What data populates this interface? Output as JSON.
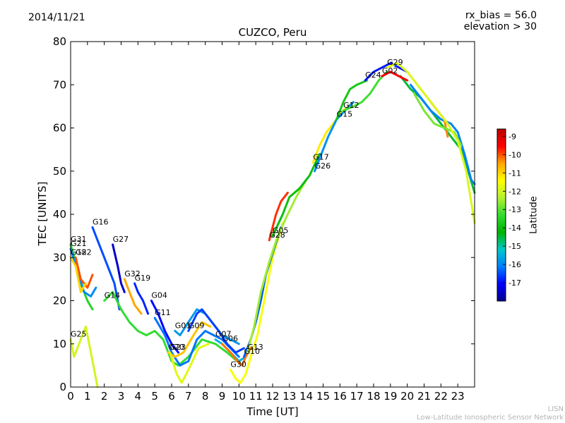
{
  "header": {
    "date": "2014/11/21",
    "bias_line": "rx_bias = 56.0",
    "elevation_line": "elevation > 30"
  },
  "footer": {
    "org_short": "LISN",
    "org_full": "Low-Latitude Ionospheric Sensor Network"
  },
  "colors": {
    "colormap": [
      "#00008f",
      "#0000ff",
      "#0080ff",
      "#00c8c8",
      "#00b400",
      "#32dc32",
      "#b4f032",
      "#ffff00",
      "#ffa500",
      "#ff0000",
      "#bb0000"
    ]
  },
  "chart_data": {
    "type": "line",
    "title": "CUZCO, Peru",
    "xlabel": "Time [UT]",
    "ylabel": "TEC [UNITS]",
    "xlim": [
      0,
      24
    ],
    "ylim": [
      0,
      80
    ],
    "xticks": [
      "0",
      "1",
      "2",
      "3",
      "4",
      "5",
      "6",
      "7",
      "8",
      "9",
      "10",
      "11",
      "12",
      "13",
      "14",
      "15",
      "16",
      "17",
      "18",
      "19",
      "20",
      "21",
      "22",
      "23"
    ],
    "yticks": [
      "0",
      "10",
      "20",
      "30",
      "40",
      "50",
      "60",
      "70",
      "80"
    ],
    "grid": false,
    "colorbar": {
      "label": "Latitude",
      "min": -18,
      "max": -8.6,
      "ticks": [
        "-9",
        "-10",
        "-11",
        "-12",
        "-13",
        "-14",
        "-15",
        "-16",
        "-17"
      ],
      "tick_values": [
        -9,
        -10,
        -11,
        -12,
        -13,
        -14,
        -15,
        -16,
        -17
      ]
    },
    "series": [
      {
        "name": "G31",
        "lat": -13.5,
        "points": [
          [
            0.0,
            33
          ],
          [
            0.3,
            29
          ],
          [
            0.6,
            24
          ],
          [
            1.0,
            20
          ],
          [
            1.3,
            18
          ]
        ]
      },
      {
        "name": "G21",
        "lat": -16.0,
        "points": [
          [
            0.0,
            32
          ],
          [
            0.4,
            27
          ],
          [
            0.8,
            22
          ],
          [
            1.2,
            21
          ],
          [
            1.5,
            23
          ]
        ]
      },
      {
        "name": "G22",
        "lat": -10.0,
        "points": [
          [
            0.3,
            30
          ],
          [
            0.6,
            25
          ],
          [
            1.0,
            23
          ],
          [
            1.3,
            26
          ]
        ]
      },
      {
        "name": "G18",
        "lat": -11.0,
        "points": [
          [
            0.0,
            30
          ],
          [
            0.3,
            28
          ],
          [
            0.6,
            22
          ],
          [
            0.9,
            24
          ]
        ]
      },
      {
        "name": "G16",
        "lat": -16.5,
        "points": [
          [
            1.3,
            37
          ],
          [
            1.6,
            34
          ],
          [
            2.0,
            30
          ],
          [
            2.3,
            27
          ],
          [
            2.6,
            24
          ],
          [
            2.9,
            18
          ]
        ]
      },
      {
        "name": "G27",
        "lat": -17.5,
        "points": [
          [
            2.5,
            33
          ],
          [
            2.8,
            28
          ],
          [
            3.0,
            24
          ],
          [
            3.2,
            22
          ]
        ]
      },
      {
        "name": "G25",
        "lat": -12.0,
        "points": [
          [
            0.0,
            11
          ],
          [
            0.2,
            7
          ],
          [
            0.5,
            10
          ],
          [
            0.9,
            14
          ],
          [
            1.2,
            8
          ],
          [
            1.5,
            2
          ],
          [
            1.6,
            0
          ]
        ]
      },
      {
        "name": "G32",
        "lat": -10.5,
        "points": [
          [
            3.2,
            25
          ],
          [
            3.5,
            22
          ],
          [
            3.8,
            19
          ],
          [
            4.2,
            17
          ]
        ]
      },
      {
        "name": "G19",
        "lat": -16.8,
        "points": [
          [
            3.8,
            24
          ],
          [
            4.0,
            22
          ],
          [
            4.3,
            20
          ],
          [
            4.6,
            17
          ]
        ]
      },
      {
        "name": "G14",
        "lat": -13.3,
        "points": [
          [
            2.0,
            20
          ],
          [
            2.5,
            22
          ],
          [
            3.0,
            18
          ],
          [
            3.5,
            15
          ],
          [
            4.0,
            13
          ],
          [
            4.5,
            12
          ],
          [
            5.0,
            13
          ],
          [
            5.5,
            11
          ],
          [
            6.0,
            6
          ],
          [
            6.4,
            5
          ],
          [
            7.0,
            7
          ],
          [
            7.8,
            11
          ],
          [
            8.6,
            10
          ],
          [
            9.3,
            8
          ],
          [
            9.9,
            6
          ]
        ]
      },
      {
        "name": "G04",
        "lat": -17.0,
        "points": [
          [
            4.8,
            20
          ],
          [
            5.2,
            17
          ],
          [
            5.6,
            13
          ],
          [
            6.0,
            10
          ],
          [
            6.4,
            8
          ]
        ]
      },
      {
        "name": "G11",
        "lat": -16.2,
        "points": [
          [
            5.0,
            16
          ],
          [
            5.6,
            12
          ],
          [
            6.0,
            8
          ],
          [
            6.5,
            5
          ],
          [
            7.0,
            6
          ],
          [
            7.5,
            11
          ],
          [
            8.0,
            13
          ],
          [
            8.5,
            12
          ],
          [
            9.0,
            11
          ],
          [
            9.5,
            9
          ],
          [
            10.0,
            7
          ]
        ]
      },
      {
        "name": "G01",
        "lat": -15.8,
        "points": [
          [
            6.2,
            13
          ],
          [
            6.5,
            12
          ],
          [
            7.0,
            15
          ],
          [
            7.5,
            18
          ],
          [
            8.0,
            17
          ],
          [
            8.6,
            14
          ],
          [
            9.0,
            12
          ],
          [
            9.5,
            11
          ],
          [
            10.0,
            10
          ]
        ]
      },
      {
        "name": "G09",
        "lat": -16.6,
        "points": [
          [
            7.0,
            13
          ],
          [
            7.5,
            17
          ],
          [
            7.8,
            18
          ],
          [
            8.2,
            16
          ],
          [
            8.8,
            13
          ],
          [
            9.3,
            10
          ],
          [
            9.8,
            8
          ],
          [
            10.3,
            9
          ]
        ]
      },
      {
        "name": "G20",
        "lat": -10.8,
        "points": [
          [
            5.8,
            8
          ],
          [
            6.2,
            7
          ],
          [
            6.7,
            8
          ],
          [
            7.3,
            12
          ],
          [
            7.8,
            15
          ],
          [
            8.3,
            14
          ]
        ]
      },
      {
        "name": "G23",
        "lat": -11.8,
        "points": [
          [
            5.9,
            8
          ],
          [
            6.3,
            3
          ],
          [
            6.6,
            1
          ],
          [
            7.0,
            4
          ],
          [
            7.6,
            9
          ],
          [
            8.2,
            10
          ]
        ]
      },
      {
        "name": "G07",
        "lat": -15.5,
        "points": [
          [
            8.6,
            11
          ],
          [
            9.0,
            10
          ],
          [
            9.5,
            8
          ],
          [
            10.0,
            6
          ],
          [
            10.4,
            7
          ]
        ]
      },
      {
        "name": "G06",
        "lat": -10.2,
        "points": [
          [
            9.0,
            10
          ],
          [
            9.5,
            8
          ],
          [
            9.9,
            6
          ],
          [
            10.2,
            5
          ],
          [
            10.4,
            7
          ],
          [
            10.7,
            9
          ]
        ]
      },
      {
        "name": "G30",
        "lat": -11.5,
        "points": [
          [
            9.5,
            4
          ],
          [
            9.8,
            2
          ],
          [
            10.1,
            1
          ],
          [
            10.4,
            3
          ],
          [
            10.7,
            7
          ],
          [
            11.1,
            12
          ],
          [
            11.5,
            20
          ],
          [
            12.0,
            30
          ],
          [
            12.3,
            34
          ],
          [
            12.6,
            38
          ]
        ]
      },
      {
        "name": "G10",
        "lat": -16.4,
        "points": [
          [
            10.3,
            7
          ],
          [
            10.7,
            11
          ],
          [
            11.0,
            15
          ],
          [
            11.3,
            20
          ],
          [
            11.6,
            26
          ],
          [
            12.0,
            31
          ],
          [
            12.5,
            37
          ]
        ]
      },
      {
        "name": "G13",
        "lat": -12.5,
        "points": [
          [
            10.5,
            8
          ],
          [
            10.9,
            14
          ],
          [
            11.3,
            22
          ],
          [
            11.8,
            29
          ],
          [
            12.3,
            35
          ],
          [
            12.9,
            40
          ],
          [
            13.4,
            44
          ],
          [
            14.0,
            48
          ]
        ]
      },
      {
        "name": "G28",
        "lat": -9.8,
        "points": [
          [
            11.8,
            34
          ],
          [
            12.2,
            40
          ],
          [
            12.5,
            43
          ],
          [
            12.9,
            45
          ]
        ]
      },
      {
        "name": "G05",
        "lat": -14.0,
        "points": [
          [
            12.0,
            35
          ],
          [
            12.6,
            40
          ],
          [
            13.0,
            44
          ],
          [
            13.6,
            46
          ],
          [
            14.2,
            49
          ],
          [
            14.8,
            54
          ]
        ]
      },
      {
        "name": "G17",
        "lat": -11.2,
        "points": [
          [
            14.4,
            52
          ],
          [
            14.8,
            56
          ],
          [
            15.2,
            59
          ],
          [
            15.6,
            61
          ],
          [
            16.2,
            64
          ],
          [
            16.8,
            66
          ]
        ]
      },
      {
        "name": "G26",
        "lat": -15.9,
        "points": [
          [
            14.5,
            50
          ],
          [
            14.9,
            54
          ],
          [
            15.3,
            58
          ],
          [
            15.8,
            62
          ],
          [
            16.3,
            64
          ],
          [
            16.8,
            66
          ]
        ]
      },
      {
        "name": "G15",
        "lat": -13.8,
        "points": [
          [
            15.8,
            62
          ],
          [
            16.2,
            66
          ],
          [
            16.6,
            69
          ],
          [
            17.0,
            70
          ],
          [
            17.6,
            71
          ]
        ]
      },
      {
        "name": "G12",
        "lat": -13.2,
        "points": [
          [
            16.2,
            64
          ],
          [
            16.8,
            65
          ],
          [
            17.3,
            66
          ],
          [
            17.8,
            68
          ],
          [
            18.3,
            71
          ],
          [
            18.8,
            73
          ]
        ]
      },
      {
        "name": "G24",
        "lat": -16.9,
        "points": [
          [
            17.5,
            71
          ],
          [
            18.0,
            73
          ],
          [
            18.5,
            74
          ],
          [
            19.0,
            75
          ],
          [
            19.5,
            74
          ],
          [
            20.0,
            73
          ]
        ]
      },
      {
        "name": "G02",
        "lat": -9.5,
        "points": [
          [
            18.5,
            72
          ],
          [
            19.0,
            73
          ],
          [
            19.5,
            72
          ],
          [
            20.0,
            71
          ]
        ]
      },
      {
        "name": "G29",
        "lat": -11.9,
        "points": [
          [
            18.8,
            74
          ],
          [
            19.4,
            75
          ],
          [
            20.0,
            73
          ],
          [
            20.6,
            70
          ],
          [
            21.2,
            67
          ],
          [
            21.8,
            64
          ],
          [
            22.4,
            61
          ],
          [
            23.0,
            57
          ],
          [
            23.5,
            50
          ],
          [
            24.0,
            38
          ]
        ]
      }
    ],
    "extra_traces": [
      {
        "lat": -14.5,
        "points": [
          [
            19.6,
            72
          ],
          [
            20.2,
            69
          ],
          [
            20.8,
            67
          ],
          [
            21.4,
            64
          ],
          [
            22.0,
            61
          ],
          [
            22.6,
            58
          ],
          [
            23.2,
            55
          ],
          [
            23.7,
            49
          ],
          [
            24.0,
            45
          ]
        ]
      },
      {
        "lat": -16.1,
        "points": [
          [
            20.2,
            70
          ],
          [
            20.8,
            67
          ],
          [
            21.4,
            64
          ],
          [
            22.0,
            62
          ],
          [
            22.6,
            61
          ],
          [
            23.0,
            59
          ],
          [
            23.4,
            54
          ],
          [
            23.8,
            48
          ],
          [
            24.0,
            47
          ]
        ]
      },
      {
        "lat": -10.3,
        "points": [
          [
            21.4,
            66
          ],
          [
            21.8,
            64
          ],
          [
            22.2,
            62
          ],
          [
            22.4,
            58
          ]
        ]
      },
      {
        "lat": -12.8,
        "points": [
          [
            20.4,
            68
          ],
          [
            21.0,
            64
          ],
          [
            21.6,
            61
          ],
          [
            22.2,
            60
          ],
          [
            22.8,
            59
          ],
          [
            23.2,
            56
          ]
        ]
      }
    ]
  }
}
